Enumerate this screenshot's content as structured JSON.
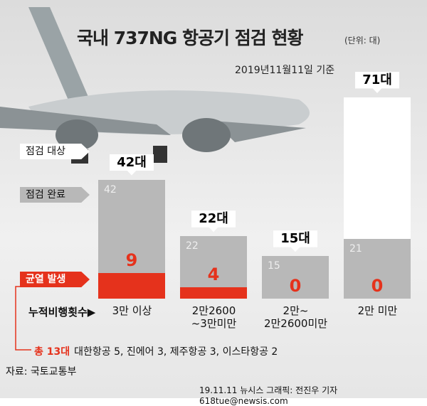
{
  "chart_data": {
    "type": "bar",
    "title": "국내 737NG 항공기 점검 현황",
    "unit": "(단위: 대)",
    "date": "2019년11월11일 기준",
    "x_label": "누적비행횟수▶",
    "categories": [
      "3만 이상",
      "2만2600\n~3만미만",
      "2만~\n2만2600미만",
      "2만 미만"
    ],
    "series": [
      {
        "name": "점검 대상",
        "color": "#ffffff",
        "values": [
          42,
          22,
          15,
          71
        ],
        "value_labels": [
          "42대",
          "22대",
          "15대",
          "71대"
        ]
      },
      {
        "name": "점검 완료",
        "color": "#b8b8b8",
        "values": [
          42,
          22,
          15,
          21
        ]
      },
      {
        "name": "균열 발생",
        "color": "#e5321c",
        "values": [
          9,
          4,
          0,
          0
        ]
      }
    ],
    "ylim": [
      0,
      72
    ]
  },
  "note": {
    "total": "총 13대",
    "detail": "대한항공 5, 진에어 3, 제주항공 3, 이스타항공 2"
  },
  "source": "자료: 국토교통부",
  "credit": "19.11.11 뉴시스 그래픽: 전진우 기자 618tue@newsis.com"
}
